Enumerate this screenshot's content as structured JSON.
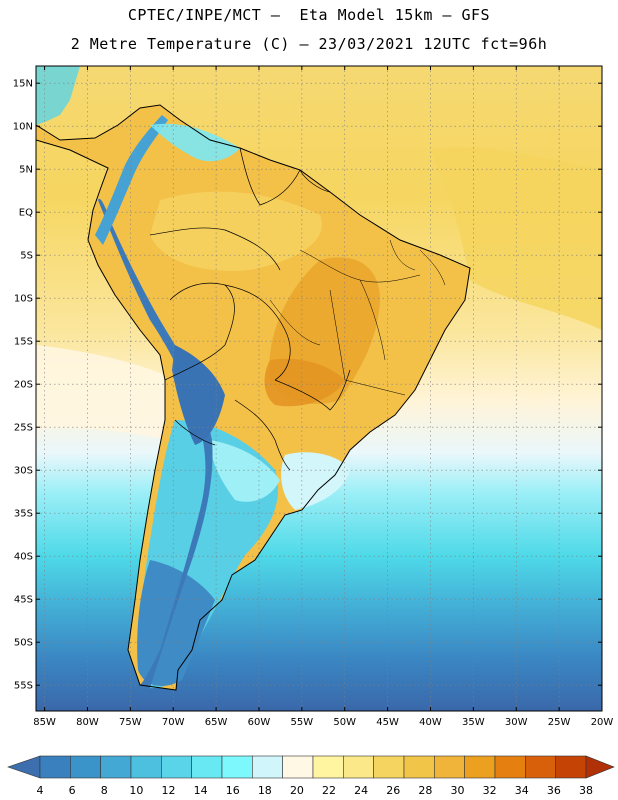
{
  "header": {
    "line1": "CPTEC/INPE/MCT –  Eta Model 15km – GFS",
    "line2": "2 Metre Temperature (C) – 23/03/2021 12UTC fct=96h"
  },
  "map": {
    "lon_range": [
      -86,
      -20
    ],
    "lat_range": [
      -58,
      17
    ],
    "lat_ticks": [
      {
        "value": 15,
        "label": "15N"
      },
      {
        "value": 10,
        "label": "10N"
      },
      {
        "value": 5,
        "label": "5N"
      },
      {
        "value": 0,
        "label": "EQ"
      },
      {
        "value": -5,
        "label": "5S"
      },
      {
        "value": -10,
        "label": "10S"
      },
      {
        "value": -15,
        "label": "15S"
      },
      {
        "value": -20,
        "label": "20S"
      },
      {
        "value": -25,
        "label": "25S"
      },
      {
        "value": -30,
        "label": "30S"
      },
      {
        "value": -35,
        "label": "35S"
      },
      {
        "value": -40,
        "label": "40S"
      },
      {
        "value": -45,
        "label": "45S"
      },
      {
        "value": -50,
        "label": "50S"
      },
      {
        "value": -55,
        "label": "55S"
      }
    ],
    "lon_ticks": [
      {
        "value": -85,
        "label": "85W"
      },
      {
        "value": -80,
        "label": "80W"
      },
      {
        "value": -75,
        "label": "75W"
      },
      {
        "value": -70,
        "label": "70W"
      },
      {
        "value": -65,
        "label": "65W"
      },
      {
        "value": -60,
        "label": "60W"
      },
      {
        "value": -55,
        "label": "55W"
      },
      {
        "value": -50,
        "label": "50W"
      },
      {
        "value": -45,
        "label": "45W"
      },
      {
        "value": -40,
        "label": "40W"
      },
      {
        "value": -35,
        "label": "35W"
      },
      {
        "value": -30,
        "label": "30W"
      },
      {
        "value": -25,
        "label": "25W"
      },
      {
        "value": -20,
        "label": "20W"
      }
    ],
    "grid": true
  },
  "colorbar": {
    "labels": [
      "4",
      "6",
      "8",
      "10",
      "12",
      "14",
      "16",
      "18",
      "20",
      "22",
      "24",
      "26",
      "28",
      "30",
      "32",
      "34",
      "36",
      "38"
    ],
    "colors": [
      "#3d6fae",
      "#3a80be",
      "#3b94c9",
      "#43a8d4",
      "#4ec0df",
      "#5ad4e8",
      "#68e8f2",
      "#7df8fd",
      "#d0f6fb",
      "#fff8e4",
      "#fff5a0",
      "#fbe888",
      "#f5d560",
      "#f1c548",
      "#f0b43b",
      "#eba01f",
      "#e58010",
      "#d9600b",
      "#c54405",
      "#b03008"
    ]
  }
}
